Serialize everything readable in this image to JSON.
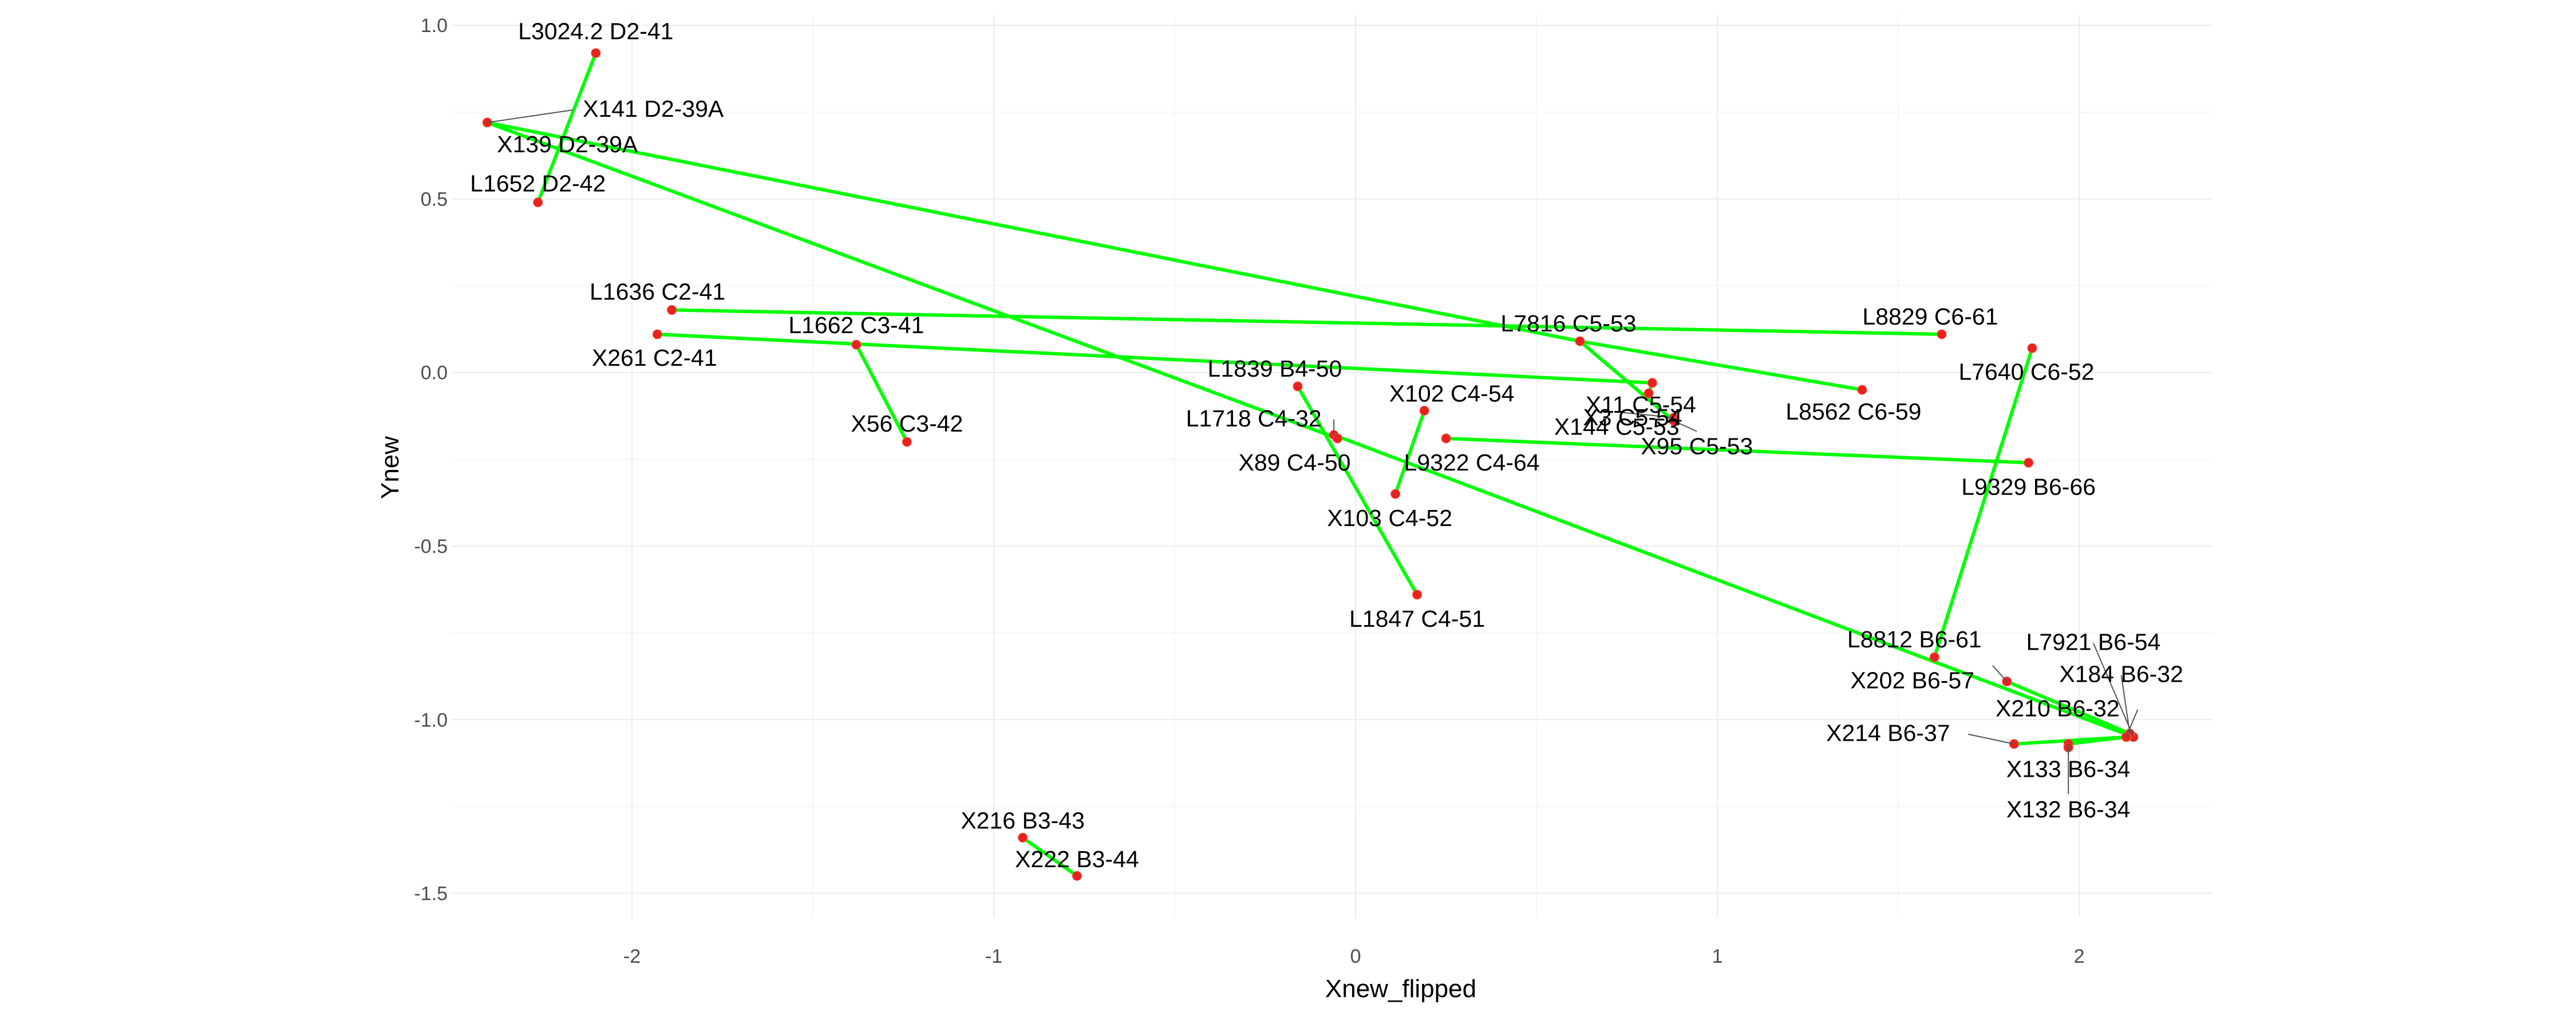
{
  "chart_data": {
    "type": "scatter",
    "title": "",
    "xlabel": "Xnew_flipped",
    "ylabel": "Ynew",
    "xlim": [
      -2.5,
      2.37
    ],
    "ylim": [
      -1.57,
      1.03
    ],
    "x_ticks": [
      -2,
      -1,
      0,
      1,
      2
    ],
    "y_ticks": [
      1.0,
      0.5,
      0.0,
      -0.5,
      -1.0,
      -1.5
    ],
    "x_tick_labels": [
      "-2",
      "-1",
      "0",
      "1",
      "2"
    ],
    "y_tick_labels": [
      "1.0",
      "0.5",
      "0.0",
      "-0.5",
      "-1.0",
      "-1.5"
    ],
    "grid": true,
    "legend": "none",
    "colors": {
      "line": "#00ff00",
      "point": "#e8231f"
    },
    "points": [
      {
        "label": "L3024.2 D2-41",
        "x": -2.1,
        "y": 0.92
      },
      {
        "label": "X141 D2-39A",
        "x": -2.4,
        "y": 0.72
      },
      {
        "label": "X139 D2-39A",
        "x": -2.4,
        "y": 0.72
      },
      {
        "label": "L1652 D2-42",
        "x": -2.26,
        "y": 0.49
      },
      {
        "label": "L1636 C2-41",
        "x": -1.89,
        "y": 0.18
      },
      {
        "label": "X261 C2-41",
        "x": -1.93,
        "y": 0.11
      },
      {
        "label": "L1662 C3-41",
        "x": -1.38,
        "y": 0.08
      },
      {
        "label": "X56 C3-42",
        "x": -1.24,
        "y": -0.2
      },
      {
        "label": "L7816 C5-53",
        "x": 0.62,
        "y": 0.09
      },
      {
        "label": "L8829 C6-61",
        "x": 1.62,
        "y": 0.11
      },
      {
        "label": "X11 C5-54",
        "x": 0.82,
        "y": -0.03
      },
      {
        "label": "L8562 C6-59",
        "x": 1.4,
        "y": -0.05
      },
      {
        "label": "L7640 C6-52",
        "x": 1.87,
        "y": 0.07
      },
      {
        "label": "L1839 B4-50",
        "x": -0.16,
        "y": -0.04
      },
      {
        "label": "X102 C4-54",
        "x": 0.19,
        "y": -0.11
      },
      {
        "label": "X3 C5-54",
        "x": 0.81,
        "y": -0.06
      },
      {
        "label": "L1718 C4-32",
        "x": -0.06,
        "y": -0.18
      },
      {
        "label": "X144 C5-53",
        "x": 0.88,
        "y": -0.13
      },
      {
        "label": "X89 C4-50",
        "x": -0.05,
        "y": -0.19
      },
      {
        "label": "L9322 C4-64",
        "x": 0.25,
        "y": -0.19
      },
      {
        "label": "X95 C5-53",
        "x": 0.88,
        "y": -0.14
      },
      {
        "label": "L9329 B6-66",
        "x": 1.86,
        "y": -0.26
      },
      {
        "label": "X103 C4-52",
        "x": 0.11,
        "y": -0.35
      },
      {
        "label": "L1847 C4-51",
        "x": 0.17,
        "y": -0.64
      },
      {
        "label": "L8812 B6-61",
        "x": 1.6,
        "y": -0.82
      },
      {
        "label": "L7921 B6-54",
        "x": 2.15,
        "y": -1.05
      },
      {
        "label": "X202 B6-57",
        "x": 1.8,
        "y": -0.89
      },
      {
        "label": "X184 B6-32",
        "x": 2.14,
        "y": -1.04
      },
      {
        "label": "X210 B6-32",
        "x": 2.13,
        "y": -1.05
      },
      {
        "label": "X214 B6-37",
        "x": 1.82,
        "y": -1.07
      },
      {
        "label": "X133 B6-34",
        "x": 1.97,
        "y": -1.07
      },
      {
        "label": "X132 B6-34",
        "x": 1.97,
        "y": -1.08
      },
      {
        "label": "X216 B3-43",
        "x": -0.92,
        "y": -1.34
      },
      {
        "label": "X222 B3-44",
        "x": -0.77,
        "y": -1.45
      }
    ],
    "segments": [
      {
        "from": "L3024.2 D2-41",
        "to": "L1652 D2-42"
      },
      {
        "from": "X141 D2-39A",
        "to": "L7816 C5-53"
      },
      {
        "from": "X139 D2-39A",
        "to": "X89 C4-50"
      },
      {
        "from": "L1636 C2-41",
        "to": "L8829 C6-61"
      },
      {
        "from": "X261 C2-41",
        "to": "X11 C5-54"
      },
      {
        "from": "L1662 C3-41",
        "to": "X56 C3-42"
      },
      {
        "from": "L7816 C5-53",
        "to": "L8562 C6-59"
      },
      {
        "from": "L7816 C5-53",
        "to": "X95 C5-53"
      },
      {
        "from": "X11 C5-54",
        "to": "X3 C5-54"
      },
      {
        "from": "X102 C4-54",
        "to": "X103 C4-52"
      },
      {
        "from": "L1839 B4-50",
        "to": "L1847 C4-51"
      },
      {
        "from": "L1718 C4-32",
        "to": "L7921 B6-54"
      },
      {
        "from": "L9322 C4-64",
        "to": "L9329 B6-66"
      },
      {
        "from": "L7640 C6-52",
        "to": "L8812 B6-61"
      },
      {
        "from": "X214 B6-37",
        "to": "X210 B6-32"
      },
      {
        "from": "X202 B6-57",
        "to": "X184 B6-32"
      },
      {
        "from": "X133 B6-34",
        "to": "X210 B6-32"
      },
      {
        "from": "X216 B3-43",
        "to": "X222 B3-44"
      }
    ]
  }
}
